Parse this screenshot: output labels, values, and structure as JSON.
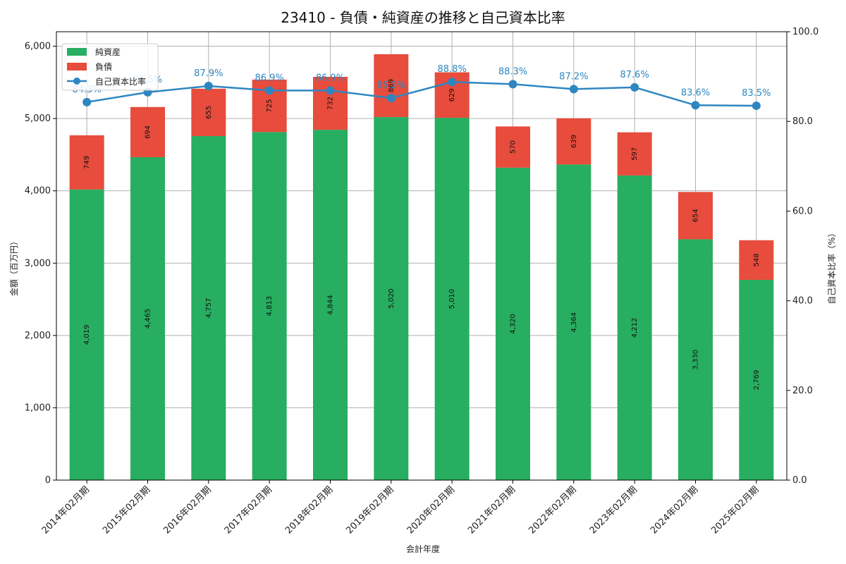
{
  "colors": {
    "net_assets": "#27ae60",
    "liabilities": "#e74c3c",
    "ratio_line": "#2e86c1",
    "grid": "#b0b0b0"
  },
  "chart_data": {
    "type": "bar",
    "title": "23410 - 負債・純資産の推移と自己資本比率",
    "xlabel": "会計年度",
    "ylabel": "金額（百万円）",
    "y2label": "自己資本比率（%）",
    "ylim": [
      0,
      6200
    ],
    "y2lim": [
      0,
      100
    ],
    "yticks": [
      "0",
      "1,000",
      "2,000",
      "3,000",
      "4,000",
      "5,000",
      "6,000"
    ],
    "y2ticks": [
      "0.0",
      "20.0",
      "40.0",
      "60.0",
      "80.0",
      "100.0"
    ],
    "grid": true,
    "legend_position": "top-left",
    "categories": [
      "2014年02月期",
      "2015年02月期",
      "2016年02月期",
      "2017年02月期",
      "2018年02月期",
      "2019年02月期",
      "2020年02月期",
      "2021年02月期",
      "2022年02月期",
      "2023年02月期",
      "2024年02月期",
      "2025年02月期"
    ],
    "series": [
      {
        "name": "純資産",
        "kind": "bar-stacked",
        "values": [
          4019,
          4465,
          4757,
          4813,
          4844,
          5020,
          5010,
          4320,
          4364,
          4212,
          3330,
          2769
        ],
        "labels": [
          "4,019",
          "4,465",
          "4,757",
          "4,813",
          "4,844",
          "5,020",
          "5,010",
          "4,320",
          "4,364",
          "4,212",
          "3,330",
          "2,769"
        ]
      },
      {
        "name": "負債",
        "kind": "bar-stacked",
        "values": [
          749,
          694,
          655,
          725,
          732,
          869,
          629,
          570,
          639,
          597,
          654,
          548
        ],
        "labels": [
          "749",
          "694",
          "655",
          "725",
          "732",
          "869",
          "629",
          "570",
          "639",
          "597",
          "654",
          "548"
        ]
      },
      {
        "name": "自己資本比率",
        "kind": "line-secondary-axis",
        "values": [
          84.3,
          86.5,
          87.9,
          86.9,
          86.9,
          85.2,
          88.8,
          88.3,
          87.2,
          87.6,
          83.6,
          83.5
        ],
        "labels": [
          "84.3%",
          "86.5%",
          "87.9%",
          "86.9%",
          "86.9%",
          "85.2%",
          "88.8%",
          "88.3%",
          "87.2%",
          "87.6%",
          "83.6%",
          "83.5%"
        ]
      }
    ]
  }
}
